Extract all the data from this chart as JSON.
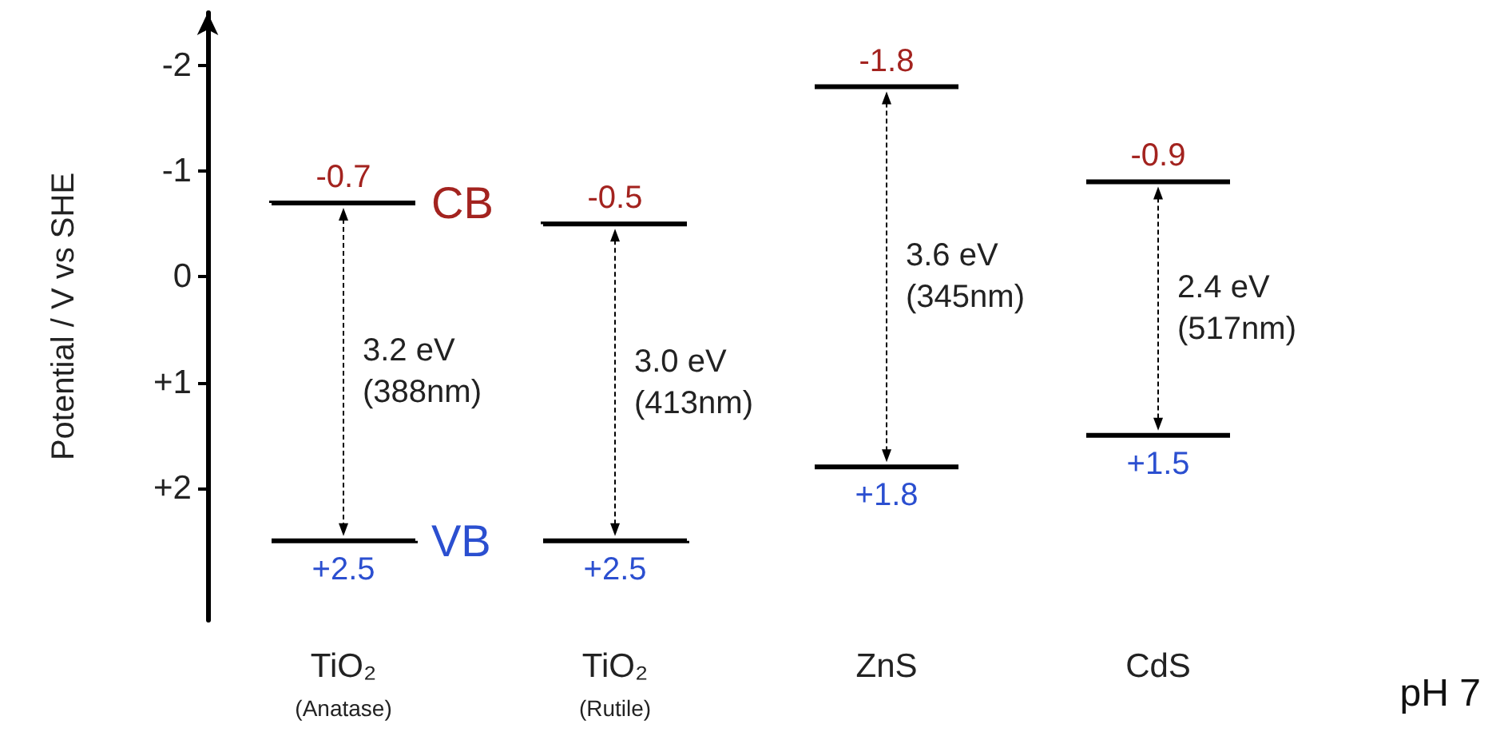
{
  "chart_data": {
    "type": "bar",
    "ylabel": "Potential / V vs SHE",
    "categories": [
      "TiO₂\n(Anatase)",
      "TiO₂\n(Rutile)",
      "ZnS",
      "CdS"
    ],
    "base": [
      -0.7,
      -0.5,
      -1.8,
      -0.9
    ],
    "values": [
      3.2,
      3.0,
      3.6,
      2.4
    ],
    "value_labels": [
      "3.2 eV\n(388nm)",
      "3.0 eV\n(413nm)",
      "3.6 eV\n(345nm)",
      "2.4 eV\n(517nm)"
    ],
    "color": "#000000",
    "ylim": [
      3.25,
      -2.5
    ],
    "yticks": [
      -2,
      -1,
      0,
      {
        "value": 1,
        "label": "+1"
      },
      {
        "value": 2,
        "label": "+2"
      }
    ],
    "grid": false,
    "annotations": [
      {
        "text": "-0.7",
        "x": "TiO₂\n(Anatase)",
        "y": -0.7
      },
      {
        "text": "+2.5",
        "x": "TiO₂\n(Anatase)",
        "y": 2.5
      },
      {
        "text": "-0.5",
        "x": "TiO₂\n(Rutile)",
        "y": -0.5
      },
      {
        "text": "+2.5",
        "x": "TiO₂\n(Rutile)",
        "y": 2.5
      },
      {
        "text": "-1.8",
        "x": "ZnS",
        "y": -1.8
      },
      {
        "text": "+1.8",
        "x": "ZnS",
        "y": 1.8
      },
      {
        "text": "-0.9",
        "x": "CdS",
        "y": -0.9
      },
      {
        "text": "+1.5",
        "x": "CdS",
        "y": 1.5
      },
      "CB",
      "VB",
      "pH 7"
    ]
  }
}
